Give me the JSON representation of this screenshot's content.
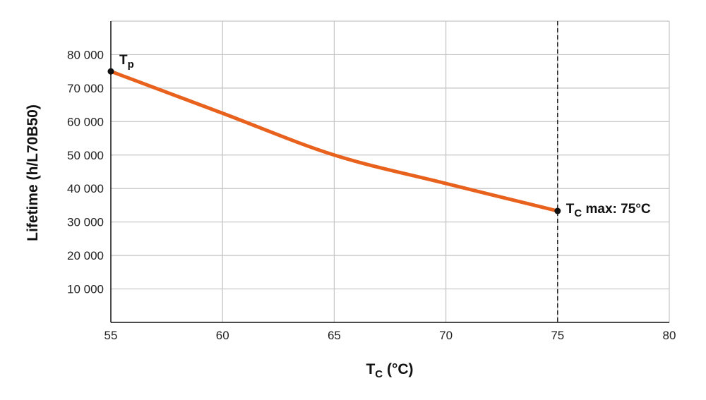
{
  "chart_data": {
    "type": "line",
    "xlabel": "T",
    "xlabel_sub": "C",
    "xlabel_unit": " (°C)",
    "ylabel": "Lifetime (h/L70B50)",
    "xlim": [
      55,
      80
    ],
    "ylim": [
      0,
      90000
    ],
    "xticks": [
      55,
      60,
      65,
      70,
      75,
      80
    ],
    "xtick_labels": [
      "55",
      "60",
      "65",
      "70",
      "75",
      "80"
    ],
    "yticks": [
      10000,
      20000,
      30000,
      40000,
      50000,
      60000,
      70000,
      80000
    ],
    "ytick_labels": [
      "10 000",
      "20 000",
      "30 000",
      "40 000",
      "50 000",
      "60 000",
      "70 000",
      "80 000"
    ],
    "grid": true,
    "series": [
      {
        "x": [
          55,
          60,
          65,
          70,
          75
        ],
        "y": [
          75000,
          62500,
          50000,
          41500,
          33300
        ],
        "color": "#e8621e"
      }
    ],
    "vline": {
      "x": 75,
      "style": "dashed"
    },
    "annotations": [
      {
        "main": "T",
        "sub": "p",
        "rest": "",
        "x": 55,
        "y": 75000
      },
      {
        "main": "T",
        "sub": "C",
        "rest": " max: 75°C",
        "x": 75,
        "y": 33300
      }
    ]
  }
}
